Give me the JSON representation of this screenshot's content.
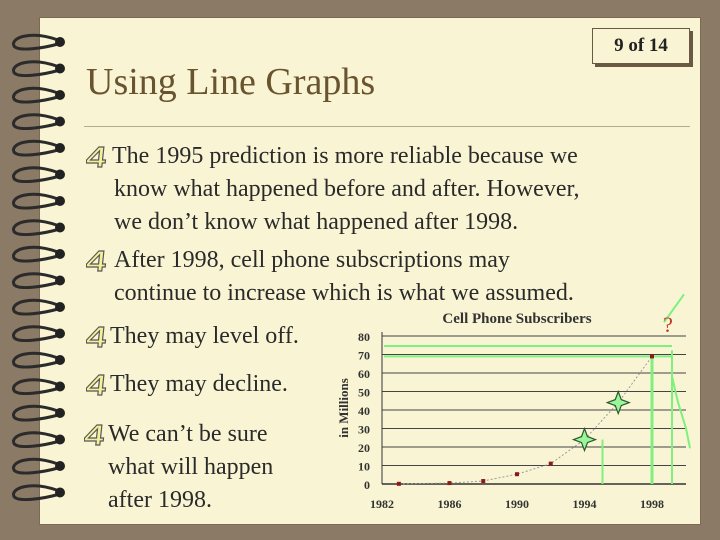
{
  "slide": {
    "counter": "9 of 14",
    "title": "Using Line Graphs",
    "bullets": [
      {
        "lines": [
          "The 1995 prediction is more reliable because we",
          "know what happened before and after. However,",
          "we don’t know what happened after 1998."
        ]
      },
      {
        "lines": [
          "After 1998, cell phone subscriptions may",
          "continue to increase which is what we assumed."
        ]
      },
      {
        "lines": [
          "They may level off."
        ]
      },
      {
        "lines": [
          "They may decline."
        ]
      },
      {
        "lines": [
          "We can’t be sure",
          "what will happen",
          "after 1998."
        ]
      }
    ]
  },
  "colors": {
    "title": "#6a5430",
    "paper": "#f9f5d4",
    "highlight": "#7ef07e",
    "data_point": "#8b1a1a"
  },
  "icons": {
    "bullet": "numeral-four-icon",
    "prediction_marker": "four-point-star-icon",
    "unknown": "question-mark"
  },
  "chart_data": {
    "type": "line",
    "title": "Cell Phone Subscribers",
    "ylabel": "in Millions",
    "xlabel": "",
    "x_ticks": [
      "1982",
      "1986",
      "1990",
      "1994",
      "1998"
    ],
    "y_ticks": [
      "0",
      "10",
      "20",
      "30",
      "40",
      "50",
      "60",
      "70",
      "80"
    ],
    "xlim": [
      1982,
      1998
    ],
    "ylim": [
      0,
      80
    ],
    "grid": true,
    "points": [
      {
        "x": 1983,
        "y": 0.1
      },
      {
        "x": 1986,
        "y": 0.5
      },
      {
        "x": 1988,
        "y": 1.6
      },
      {
        "x": 1990,
        "y": 5.3
      },
      {
        "x": 1992,
        "y": 11
      },
      {
        "x": 1998,
        "y": 69
      }
    ],
    "predictions": [
      {
        "x": 1994,
        "y": 24
      },
      {
        "x": 1996,
        "y": 44
      }
    ],
    "annotation": "?"
  }
}
